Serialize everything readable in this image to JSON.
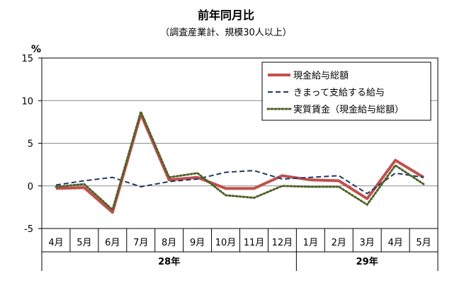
{
  "chart_data": {
    "type": "line",
    "title": "前年同月比",
    "subtitle": "（調査産業計、規模30人以上）",
    "ylabel": "%",
    "ylim": [
      -5,
      15
    ],
    "yticks": [
      -5,
      0,
      5,
      10,
      15
    ],
    "grid": true,
    "legend_position": "top-right",
    "categories": [
      "4月",
      "5月",
      "6月",
      "7月",
      "8月",
      "9月",
      "10月",
      "11月",
      "12月",
      "1月",
      "2月",
      "3月",
      "4月",
      "5月"
    ],
    "groups": [
      {
        "label": "28年",
        "start": 0,
        "end": 8
      },
      {
        "label": "29年",
        "start": 9,
        "end": 13
      }
    ],
    "series": [
      {
        "name": "現金給与総額",
        "color": "#c0504d",
        "style": "solid",
        "values": [
          -0.3,
          -0.2,
          -3.1,
          8.4,
          0.7,
          1.0,
          -0.3,
          -0.3,
          1.2,
          0.7,
          0.6,
          -1.5,
          3.0,
          1.0
        ]
      },
      {
        "name": "きまって支給する給与",
        "color": "#1f3864",
        "style": "dashed",
        "values": [
          0.1,
          0.6,
          1.0,
          -0.1,
          0.5,
          0.8,
          1.6,
          1.8,
          0.8,
          1.0,
          1.2,
          -0.9,
          1.5,
          1.0
        ]
      },
      {
        "name": "実質賃金（現金給与総額）",
        "color": "#4f6228",
        "style": "dotted",
        "values": [
          -0.1,
          0.2,
          -2.8,
          8.7,
          1.0,
          1.5,
          -1.1,
          -1.4,
          0.0,
          -0.1,
          -0.1,
          -2.2,
          2.4,
          0.2
        ]
      }
    ]
  }
}
